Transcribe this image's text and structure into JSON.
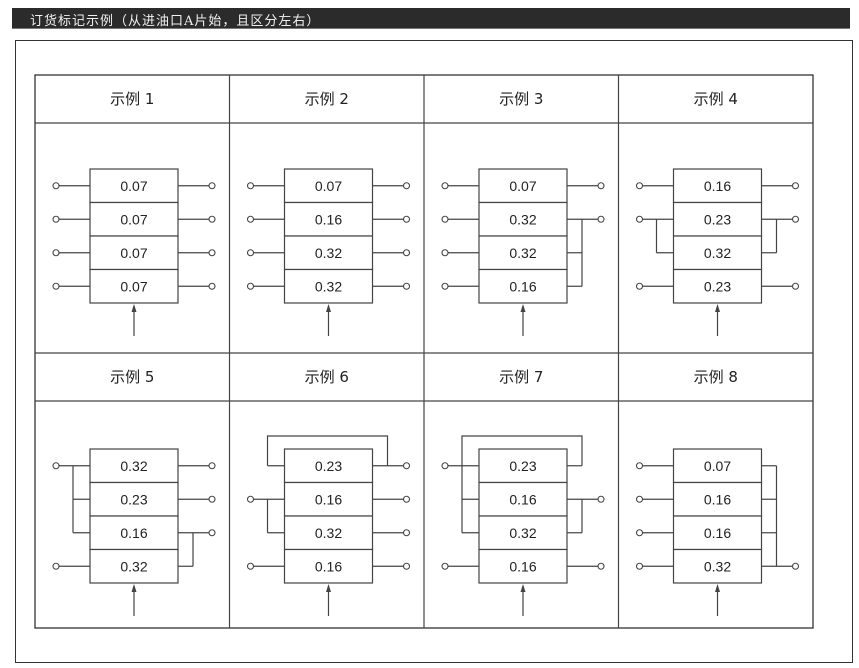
{
  "title": "订货标记示例（从进油口A片始，且区分左右）",
  "examples": [
    {
      "label": "示例 1",
      "values": [
        "0.07",
        "0.07",
        "0.07",
        "0.07"
      ],
      "left": {
        "ports": [
          0,
          1,
          2,
          3
        ],
        "bridge": []
      },
      "right": {
        "ports": [
          0,
          1,
          2,
          3
        ],
        "bridge": []
      },
      "loop": false
    },
    {
      "label": "示例 2",
      "values": [
        "0.07",
        "0.16",
        "0.32",
        "0.32"
      ],
      "left": {
        "ports": [
          0,
          1,
          2,
          3
        ],
        "bridge": []
      },
      "right": {
        "ports": [
          0,
          1,
          2,
          3
        ],
        "bridge": []
      },
      "loop": false
    },
    {
      "label": "示例 3",
      "values": [
        "0.07",
        "0.32",
        "0.32",
        "0.16"
      ],
      "left": {
        "ports": [
          0,
          1,
          2,
          3
        ],
        "bridge": []
      },
      "right": {
        "ports": [
          0,
          1
        ],
        "bridge": [
          1,
          2,
          3
        ]
      },
      "loop": false
    },
    {
      "label": "示例 4",
      "values": [
        "0.16",
        "0.23",
        "0.32",
        "0.23"
      ],
      "left": {
        "ports": [
          0,
          1,
          3
        ],
        "bridge": [
          1,
          2
        ]
      },
      "right": {
        "ports": [
          0,
          1,
          3
        ],
        "bridge": [
          1,
          2
        ]
      },
      "loop": false
    },
    {
      "label": "示例 5",
      "values": [
        "0.32",
        "0.23",
        "0.16",
        "0.32"
      ],
      "left": {
        "ports": [
          0,
          3
        ],
        "bridge": [
          0,
          1,
          2
        ]
      },
      "right": {
        "ports": [
          0,
          1,
          2
        ],
        "bridge": [
          2,
          3
        ]
      },
      "loop": false
    },
    {
      "label": "示例 6",
      "values": [
        "0.23",
        "0.16",
        "0.32",
        "0.16"
      ],
      "left": {
        "ports": [
          1,
          3
        ],
        "bridge": [
          1,
          2
        ]
      },
      "right": {
        "ports": [
          0,
          1,
          2,
          3
        ],
        "bridge": []
      },
      "loop": true
    },
    {
      "label": "示例 7",
      "values": [
        "0.23",
        "0.16",
        "0.32",
        "0.16"
      ],
      "left": {
        "ports": [
          0,
          3
        ],
        "bridge": [
          0,
          1,
          2
        ]
      },
      "right": {
        "ports": [
          1,
          3
        ],
        "bridge": [
          1,
          2
        ]
      },
      "loop": true
    },
    {
      "label": "示例 8",
      "values": [
        "0.07",
        "0.16",
        "0.16",
        "0.32"
      ],
      "left": {
        "ports": [
          0,
          1,
          2,
          3
        ],
        "bridge": []
      },
      "right": {
        "ports": [
          3
        ],
        "bridge": [
          0,
          1,
          2,
          3
        ]
      },
      "loop": false
    }
  ]
}
